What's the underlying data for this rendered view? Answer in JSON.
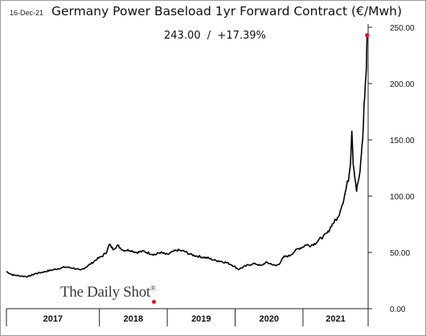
{
  "header": {
    "date": "16-Dec-21",
    "title": "Germany Power Baseload 1yr Forward Contract (€/Mwh)",
    "last_value": "243.00",
    "separator": "/",
    "change": "+17.39%"
  },
  "brand": {
    "name": "The Daily Shot",
    "mark": "®",
    "dot_color": "#e0141e"
  },
  "chart_data": {
    "type": "line",
    "title": "Germany Power Baseload 1yr Forward Contract (€/Mwh)",
    "xlabel": "",
    "ylabel": "",
    "xlim": [
      2016.63,
      2021.96
    ],
    "ylim": [
      0,
      250
    ],
    "y_ticks": [
      0,
      50,
      100,
      150,
      200,
      250
    ],
    "y_tick_labels": [
      "0.00",
      "50.00",
      "100.00",
      "150.00",
      "200.00",
      "250.00"
    ],
    "x_categories": [
      "2017",
      "2018",
      "2019",
      "2020",
      "2021"
    ],
    "x_category_bounds": [
      2016.63,
      2018.0,
      2019.0,
      2020.0,
      2021.0,
      2021.96
    ],
    "grid": false,
    "y_axis_side": "right",
    "line_color": "#000000",
    "marker_color": "#e0141e",
    "series": [
      {
        "points": [
          [
            2016.63,
            33
          ],
          [
            2016.72,
            30
          ],
          [
            2016.85,
            29
          ],
          [
            2016.95,
            28.5
          ],
          [
            2017.05,
            31
          ],
          [
            2017.2,
            33
          ],
          [
            2017.35,
            35
          ],
          [
            2017.5,
            37
          ],
          [
            2017.62,
            36
          ],
          [
            2017.72,
            34
          ],
          [
            2017.8,
            37
          ],
          [
            2017.9,
            41
          ],
          [
            2017.96,
            44
          ],
          [
            2018.05,
            47
          ],
          [
            2018.1,
            50
          ],
          [
            2018.15,
            57
          ],
          [
            2018.2,
            53
          ],
          [
            2018.27,
            56
          ],
          [
            2018.35,
            52
          ],
          [
            2018.45,
            52
          ],
          [
            2018.55,
            50
          ],
          [
            2018.65,
            51
          ],
          [
            2018.75,
            49
          ],
          [
            2018.82,
            48
          ],
          [
            2018.9,
            50
          ],
          [
            2018.95,
            49
          ],
          [
            2019.0,
            48
          ],
          [
            2019.1,
            51
          ],
          [
            2019.15,
            52
          ],
          [
            2019.25,
            51
          ],
          [
            2019.35,
            48
          ],
          [
            2019.5,
            46
          ],
          [
            2019.6,
            45
          ],
          [
            2019.7,
            43
          ],
          [
            2019.8,
            42
          ],
          [
            2019.87,
            41
          ],
          [
            2019.95,
            39
          ],
          [
            2020.0,
            37
          ],
          [
            2020.05,
            35
          ],
          [
            2020.12,
            37
          ],
          [
            2020.2,
            39
          ],
          [
            2020.3,
            40
          ],
          [
            2020.38,
            38
          ],
          [
            2020.45,
            41
          ],
          [
            2020.52,
            40
          ],
          [
            2020.6,
            38
          ],
          [
            2020.65,
            40
          ],
          [
            2020.72,
            46
          ],
          [
            2020.8,
            47
          ],
          [
            2020.86,
            50
          ],
          [
            2020.92,
            53
          ],
          [
            2021.0,
            55
          ],
          [
            2021.05,
            57
          ],
          [
            2021.1,
            56
          ],
          [
            2021.18,
            58
          ],
          [
            2021.25,
            62
          ],
          [
            2021.3,
            64
          ],
          [
            2021.37,
            68
          ],
          [
            2021.42,
            74
          ],
          [
            2021.47,
            78
          ],
          [
            2021.52,
            81
          ],
          [
            2021.55,
            88
          ],
          [
            2021.6,
            97
          ],
          [
            2021.64,
            108
          ],
          [
            2021.67,
            115
          ],
          [
            2021.7,
            130
          ],
          [
            2021.72,
            160
          ],
          [
            2021.74,
            130
          ],
          [
            2021.76,
            120
          ],
          [
            2021.79,
            105
          ],
          [
            2021.81,
            112
          ],
          [
            2021.84,
            120
          ],
          [
            2021.86,
            138
          ],
          [
            2021.88,
            150
          ],
          [
            2021.9,
            180
          ],
          [
            2021.92,
            200
          ],
          [
            2021.935,
            215
          ],
          [
            2021.945,
            243
          ]
        ]
      }
    ],
    "last_point": {
      "x": 2021.945,
      "y": 243
    }
  }
}
